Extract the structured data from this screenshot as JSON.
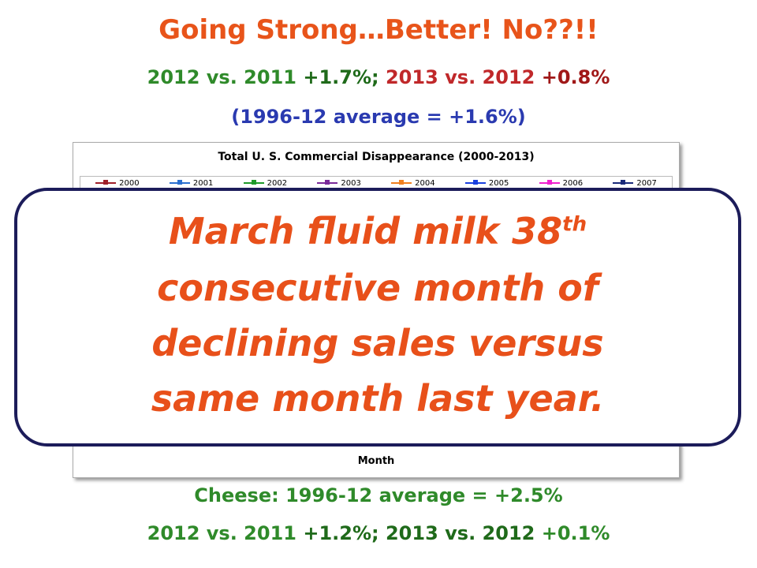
{
  "header": {
    "title": "Going Strong…Better!  No??!!",
    "line2": [
      "2012 vs. 2011",
      "+1.7%;",
      "2013 vs. 2012",
      "+0.8%"
    ],
    "line3": "(1996-12 average = +1.6%)"
  },
  "chart_panel": {
    "title": "Total U. S. Commercial Disappearance (2000-2013)",
    "legend": [
      {
        "label": "2000",
        "color": "#a0202a"
      },
      {
        "label": "2001",
        "color": "#2a6fd0"
      },
      {
        "label": "2002",
        "color": "#1f9a2a"
      },
      {
        "label": "2003",
        "color": "#7a2a9a"
      },
      {
        "label": "2004",
        "color": "#f08020"
      },
      {
        "label": "2005",
        "color": "#1a40e0"
      },
      {
        "label": "2006",
        "color": "#f020d0"
      },
      {
        "label": "2007",
        "color": "#1a2a7a"
      }
    ],
    "x_label": "Month"
  },
  "callout": {
    "lines": [
      "March fluid milk 38",
      "consecutive month of",
      "declining sales versus",
      "same month last year."
    ],
    "superscript": "th"
  },
  "footer": {
    "line1": "Cheese:  1996-12 average = +2.5%",
    "line2": [
      "2012 vs. 2011",
      "+1.2%;",
      "2013 vs. 2012",
      "+0.1%"
    ]
  }
}
